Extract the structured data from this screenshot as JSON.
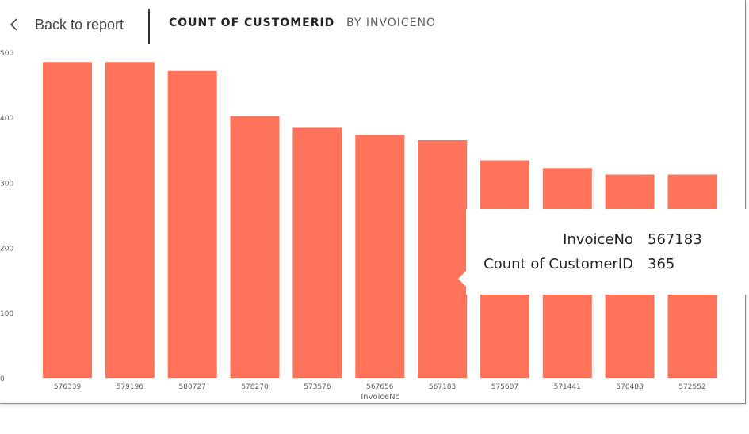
{
  "header": {
    "back_label": "Back to report",
    "title": "COUNT OF CUSTOMERID",
    "subtitle": "BY INVOICENO"
  },
  "tooltip": {
    "rows": [
      {
        "label": "InvoiceNo",
        "value": "567183"
      },
      {
        "label": "Count of CustomerID",
        "value": "365"
      }
    ]
  },
  "colors": {
    "bar": "#ff735b",
    "axis_text": "#605e5c"
  },
  "chart_data": {
    "type": "bar",
    "categories": [
      "576339",
      "579196",
      "580727",
      "578270",
      "573576",
      "567656",
      "567183",
      "575607",
      "571441",
      "570488",
      "572552"
    ],
    "values": [
      485,
      485,
      471,
      402,
      385,
      373,
      365,
      334,
      322,
      312,
      312
    ],
    "xlabel": "InvoiceNo",
    "ylabel": "",
    "ylim": [
      0,
      500
    ],
    "yticks": [
      0,
      100,
      200,
      300,
      400,
      500
    ],
    "grid": false,
    "legend": "none"
  }
}
